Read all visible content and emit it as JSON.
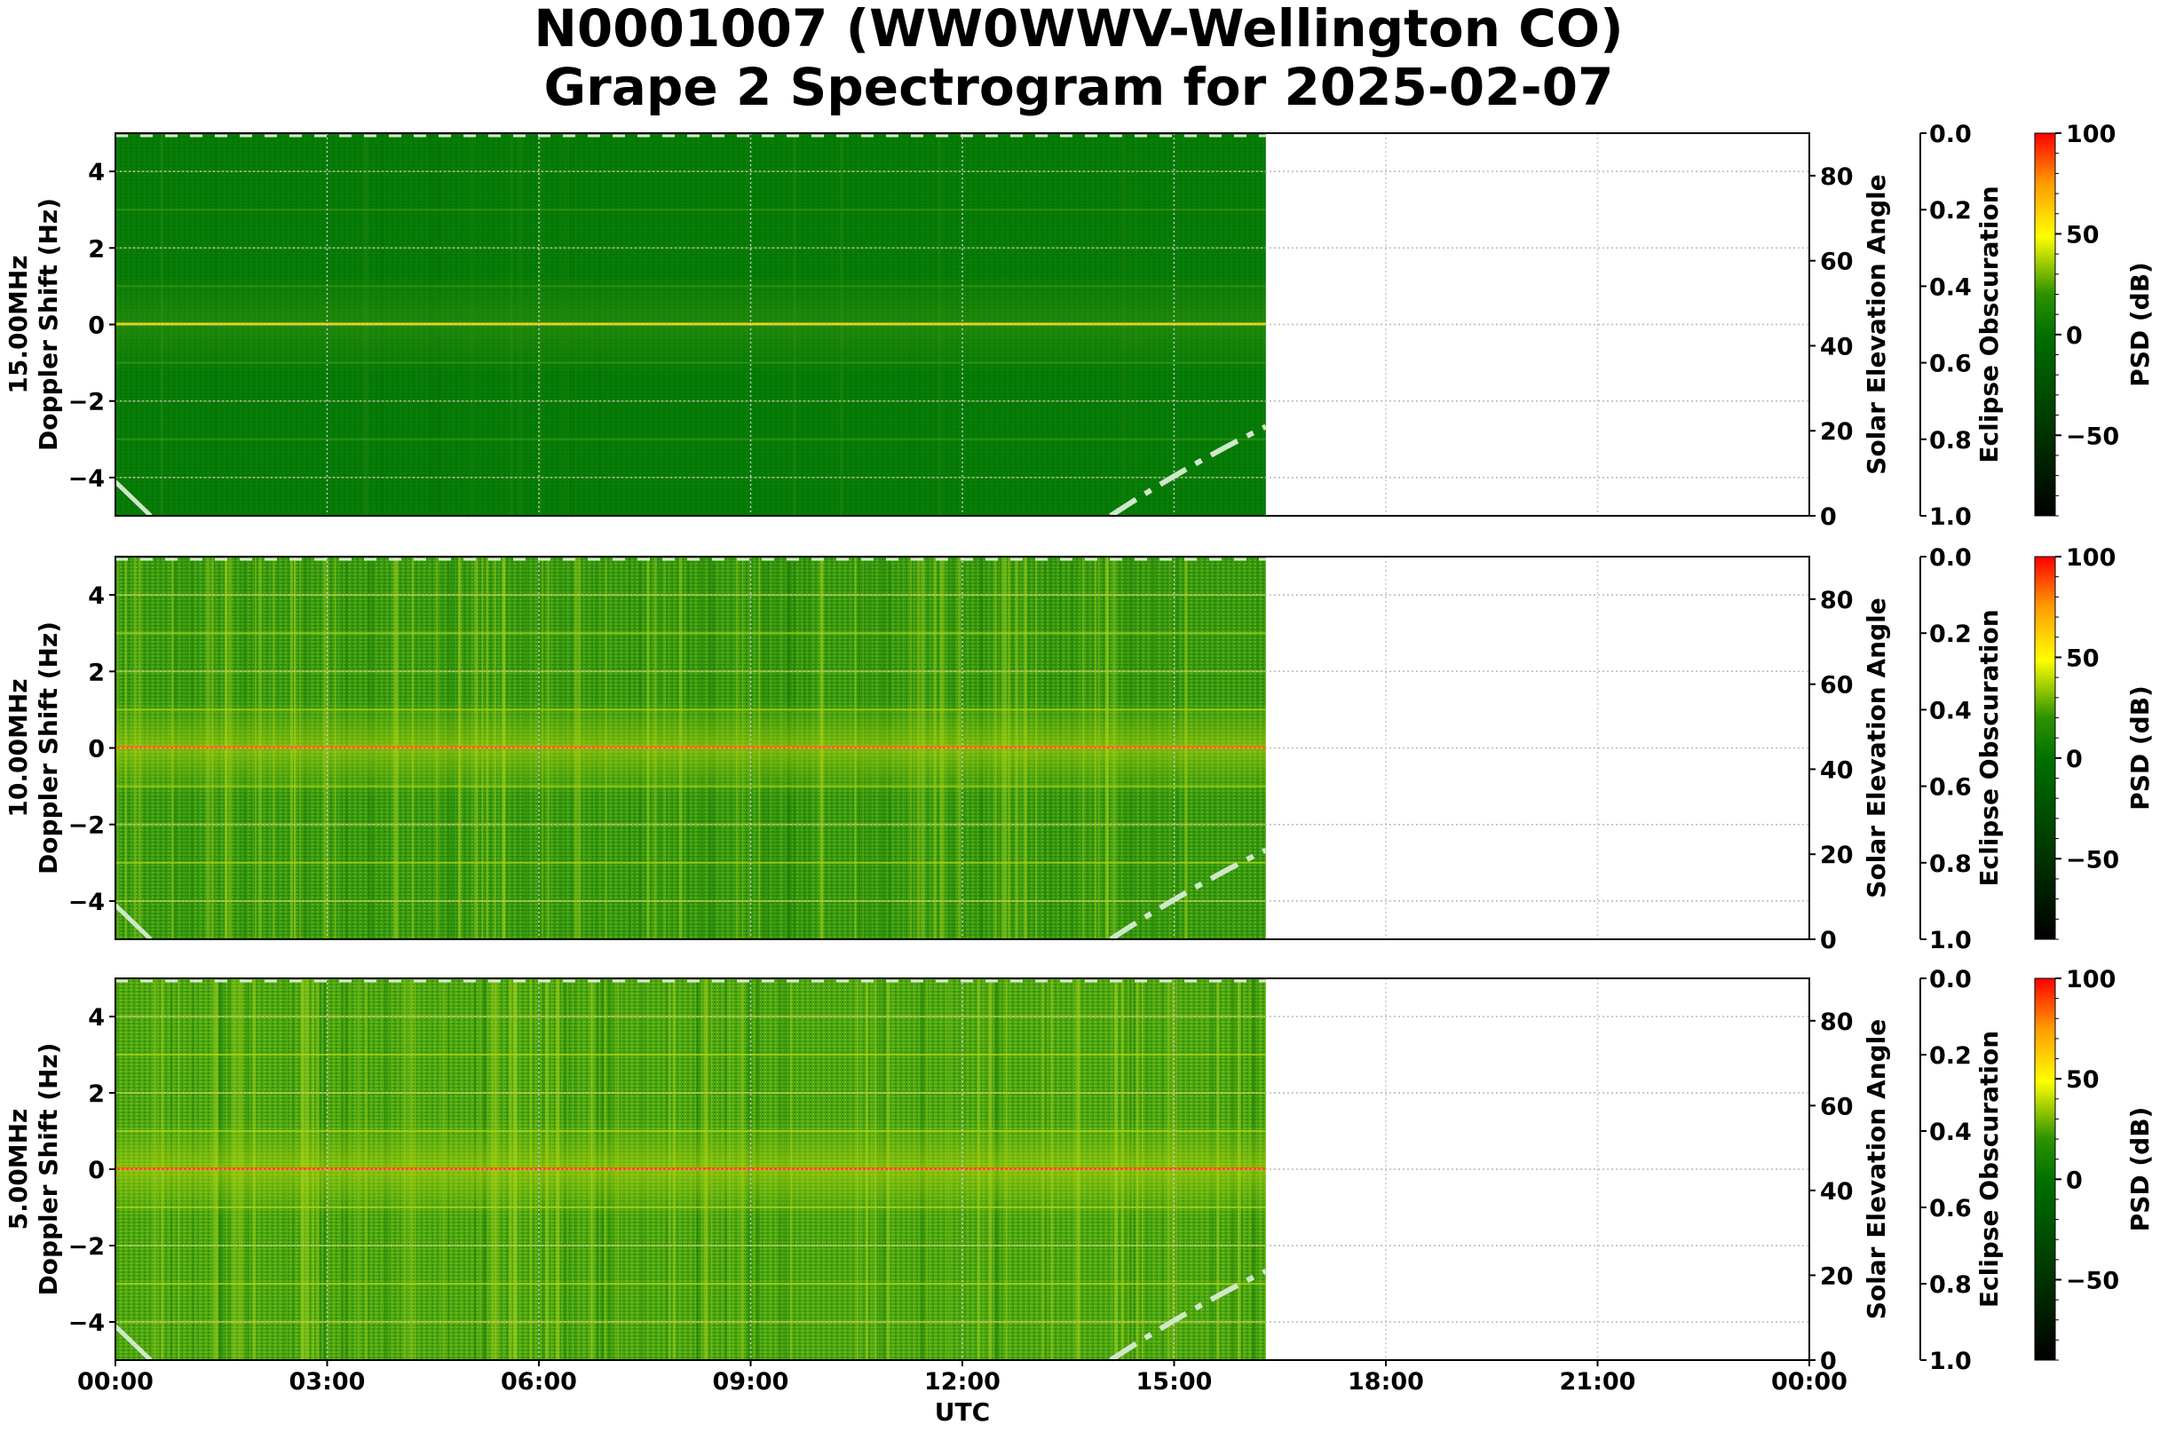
{
  "title": {
    "line1": "N0001007 (WW0WWV-Wellington CO)",
    "line2": "Grape 2 Spectrogram for 2025-02-07"
  },
  "xaxis": {
    "label": "UTC",
    "ticks": [
      "00:00",
      "03:00",
      "06:00",
      "09:00",
      "12:00",
      "15:00",
      "18:00",
      "21:00",
      "00:00"
    ],
    "range_hours": [
      0,
      24
    ],
    "data_end_hours": 16.3
  },
  "chart_data": [
    {
      "type": "heatmap",
      "title": "15.00MHz",
      "ylabel": "15.00MHz\nDoppler Shift (Hz)",
      "ylabel_line1": "15.00MHz",
      "ylabel_line2": "Doppler Shift (Hz)",
      "xlabel": "",
      "ylim": [
        -5,
        5
      ],
      "yticks": [
        "4",
        "2",
        "0",
        "−2",
        "−4"
      ],
      "ytick_values": [
        4,
        2,
        0,
        -2,
        -4
      ],
      "x": [
        "00:00",
        "03:00",
        "06:00",
        "09:00",
        "12:00",
        "15:00",
        "18:00",
        "21:00",
        "00:00"
      ],
      "data_coverage_utc": [
        "00:00",
        "16:18"
      ],
      "carrier_line_hz": 0,
      "typical_psd_db": -5,
      "carrier_psd_db": 55,
      "base_color": "#067a06",
      "carrier_color": "#f0d800",
      "secondary_axes": {
        "solar_elevation": {
          "label": "Solar Elevation Angle",
          "ticks": [
            "0",
            "20",
            "40",
            "60",
            "80"
          ],
          "ylim": [
            0,
            90
          ]
        },
        "eclipse_obscuration": {
          "label": "Eclipse Obscuration",
          "ticks": [
            "0.0",
            "0.2",
            "0.4",
            "0.6",
            "0.8",
            "1.0"
          ],
          "ylim": [
            1.0,
            0.0
          ]
        }
      },
      "solar_elevation_curve": {
        "hours": [
          0,
          0.5,
          14.1,
          15,
          16.3
        ],
        "degrees": [
          8,
          0,
          0,
          10,
          21
        ]
      },
      "colorbar": {
        "label": "PSD (dB)",
        "ticks": [
          "100",
          "50",
          "0",
          "−50"
        ],
        "range": [
          -90,
          100
        ]
      }
    },
    {
      "type": "heatmap",
      "title": "10.00MHz",
      "ylabel_line1": "10.00MHz",
      "ylabel_line2": "Doppler Shift (Hz)",
      "xlabel": "",
      "ylim": [
        -5,
        5
      ],
      "yticks": [
        "4",
        "2",
        "0",
        "−2",
        "−4"
      ],
      "ytick_values": [
        4,
        2,
        0,
        -2,
        -4
      ],
      "x": [
        "00:00",
        "03:00",
        "06:00",
        "09:00",
        "12:00",
        "15:00",
        "18:00",
        "21:00",
        "00:00"
      ],
      "data_coverage_utc": [
        "00:00",
        "16:18"
      ],
      "carrier_line_hz": 0,
      "typical_psd_db": 15,
      "carrier_psd_db": 75,
      "base_color": "#3e9a10",
      "carrier_color": "#ff6a00",
      "secondary_axes": {
        "solar_elevation": {
          "label": "Solar Elevation Angle",
          "ticks": [
            "0",
            "20",
            "40",
            "60",
            "80"
          ],
          "ylim": [
            0,
            90
          ]
        },
        "eclipse_obscuration": {
          "label": "Eclipse Obscuration",
          "ticks": [
            "0.0",
            "0.2",
            "0.4",
            "0.6",
            "0.8",
            "1.0"
          ],
          "ylim": [
            1.0,
            0.0
          ]
        }
      },
      "solar_elevation_curve": {
        "hours": [
          0,
          0.5,
          14.1,
          15,
          16.3
        ],
        "degrees": [
          8,
          0,
          0,
          10,
          21
        ]
      },
      "colorbar": {
        "label": "PSD (dB)",
        "ticks": [
          "100",
          "50",
          "0",
          "−50"
        ],
        "range": [
          -90,
          100
        ]
      }
    },
    {
      "type": "heatmap",
      "title": "5.00MHz",
      "ylabel_line1": "5.00MHz",
      "ylabel_line2": "Doppler Shift (Hz)",
      "xlabel": "UTC",
      "ylim": [
        -5,
        5
      ],
      "yticks": [
        "4",
        "2",
        "0",
        "−2",
        "−4"
      ],
      "ytick_values": [
        4,
        2,
        0,
        -2,
        -4
      ],
      "x": [
        "00:00",
        "03:00",
        "06:00",
        "09:00",
        "12:00",
        "15:00",
        "18:00",
        "21:00",
        "00:00"
      ],
      "data_coverage_utc": [
        "00:00",
        "16:18"
      ],
      "carrier_line_hz": 0,
      "typical_psd_db": 20,
      "carrier_psd_db": 80,
      "base_color": "#4ea812",
      "carrier_color": "#ff5500",
      "secondary_axes": {
        "solar_elevation": {
          "label": "Solar Elevation Angle",
          "ticks": [
            "0",
            "20",
            "40",
            "60",
            "80"
          ],
          "ylim": [
            0,
            90
          ]
        },
        "eclipse_obscuration": {
          "label": "Eclipse Obscuration",
          "ticks": [
            "0.0",
            "0.2",
            "0.4",
            "0.6",
            "0.8",
            "1.0"
          ],
          "ylim": [
            1.0,
            0.0
          ]
        }
      },
      "solar_elevation_curve": {
        "hours": [
          0,
          0.5,
          14.1,
          15,
          16.3
        ],
        "degrees": [
          8,
          0,
          0,
          10,
          21
        ]
      },
      "colorbar": {
        "label": "PSD (dB)",
        "ticks": [
          "100",
          "50",
          "0",
          "−50"
        ],
        "range": [
          -90,
          100
        ]
      }
    }
  ]
}
